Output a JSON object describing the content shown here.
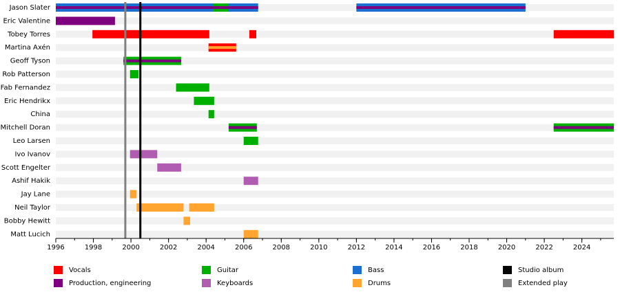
{
  "chart_data": {
    "type": "timeline",
    "xlim": [
      1996,
      2025.7
    ],
    "xticks": [
      1996,
      1998,
      2000,
      2002,
      2004,
      2006,
      2008,
      2010,
      2012,
      2014,
      2016,
      2018,
      2020,
      2022,
      2024
    ],
    "minor_tick_step": 1,
    "roles": [
      {
        "name": "Vocals",
        "color": "#ff0000"
      },
      {
        "name": "Production, engineering",
        "color": "#7f007f"
      },
      {
        "name": "Guitar",
        "color": "#00b000"
      },
      {
        "name": "Keyboards",
        "color": "#b05cb0"
      },
      {
        "name": "Bass",
        "color": "#1a6fd0"
      },
      {
        "name": "Drums",
        "color": "#ffa530"
      }
    ],
    "events": [
      {
        "name": "Studio album",
        "color": "#000000",
        "x": 2000.5
      },
      {
        "name": "Extended play",
        "color": "#808080",
        "x": 1999.7
      }
    ],
    "members": [
      {
        "name": "Jason Slater",
        "periods": [
          {
            "start": 1996,
            "end": 2006.77,
            "role": 4,
            "secondary": 1
          },
          {
            "start": 2004.4,
            "end": 2005.2,
            "role": 2,
            "secondary": 1
          },
          {
            "start": 2012,
            "end": 2021,
            "role": 4,
            "secondary": 1
          }
        ]
      },
      {
        "name": "Eric Valentine",
        "periods": [
          {
            "start": 1996,
            "end": 1999.15,
            "role": 1
          }
        ]
      },
      {
        "name": "Tobey Torres",
        "periods": [
          {
            "start": 1997.95,
            "end": 2004.17,
            "role": 0
          },
          {
            "start": 2006.3,
            "end": 2006.67,
            "role": 0
          },
          {
            "start": 2022.5,
            "end": 2025.7,
            "role": 0
          }
        ]
      },
      {
        "name": "Martina Axén",
        "periods": [
          {
            "start": 2004.13,
            "end": 2005.6,
            "role": 0,
            "secondary": 5
          }
        ]
      },
      {
        "name": "Geoff Tyson",
        "periods": [
          {
            "start": 1999.6,
            "end": 2002.67,
            "role": 2,
            "secondary": 1
          }
        ]
      },
      {
        "name": "Rob Patterson",
        "periods": [
          {
            "start": 1999.95,
            "end": 2000.4,
            "role": 2
          }
        ]
      },
      {
        "name": "Fab Fernandez",
        "periods": [
          {
            "start": 2002.4,
            "end": 2004.17,
            "role": 2
          }
        ]
      },
      {
        "name": "Eric Hendrikx",
        "periods": [
          {
            "start": 2003.35,
            "end": 2004.43,
            "role": 2
          }
        ]
      },
      {
        "name": "China",
        "periods": [
          {
            "start": 2004.13,
            "end": 2004.43,
            "role": 2
          }
        ]
      },
      {
        "name": "Mitchell Doran",
        "periods": [
          {
            "start": 2005.2,
            "end": 2006.7,
            "role": 2,
            "secondary": 1
          },
          {
            "start": 2022.5,
            "end": 2025.7,
            "role": 2,
            "secondary": 1
          }
        ]
      },
      {
        "name": "Leo Larsen",
        "periods": [
          {
            "start": 2006,
            "end": 2006.77,
            "role": 2
          }
        ]
      },
      {
        "name": "Ivo Ivanov",
        "periods": [
          {
            "start": 1999.95,
            "end": 2001.4,
            "role": 3
          }
        ]
      },
      {
        "name": "Scott Engelter",
        "periods": [
          {
            "start": 2001.4,
            "end": 2002.67,
            "role": 3
          }
        ]
      },
      {
        "name": "Ashif Hakik",
        "periods": [
          {
            "start": 2006,
            "end": 2006.77,
            "role": 3
          }
        ]
      },
      {
        "name": "Jay Lane",
        "periods": [
          {
            "start": 1999.95,
            "end": 2000.3,
            "role": 5
          }
        ]
      },
      {
        "name": "Neil Taylor",
        "periods": [
          {
            "start": 2000.3,
            "end": 2002.8,
            "role": 5
          },
          {
            "start": 2003.1,
            "end": 2004.43,
            "role": 5
          }
        ]
      },
      {
        "name": "Bobby Hewitt",
        "periods": [
          {
            "start": 2002.8,
            "end": 2003.15,
            "role": 5
          }
        ]
      },
      {
        "name": "Matt Lucich",
        "periods": [
          {
            "start": 2006,
            "end": 2006.77,
            "role": 5
          }
        ]
      }
    ]
  }
}
